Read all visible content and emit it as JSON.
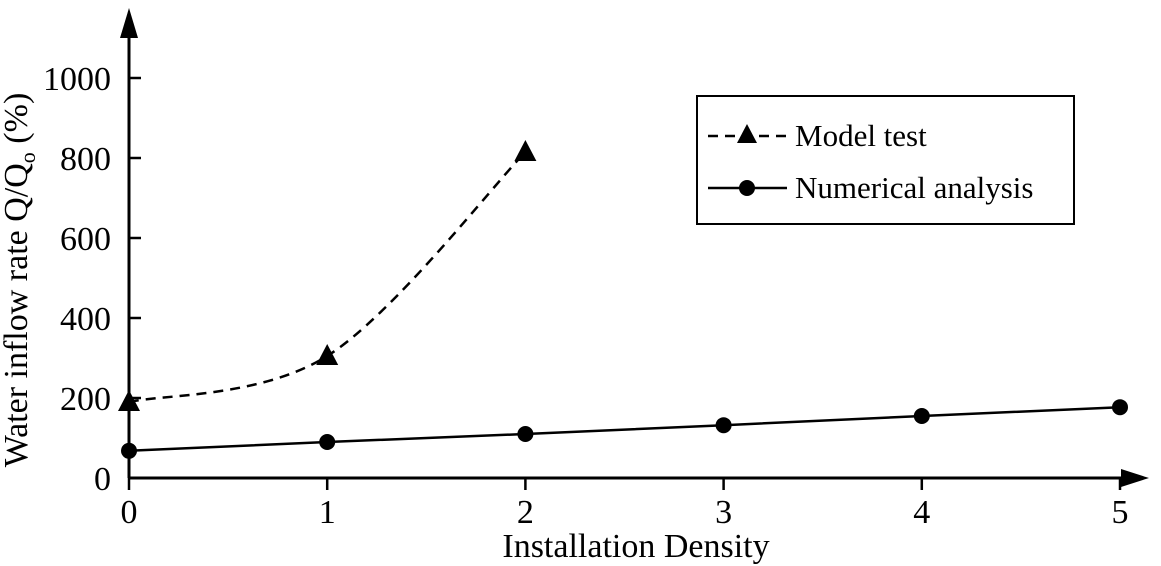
{
  "chart_data": {
    "type": "line",
    "xlabel": "Installation Density",
    "ylabel": "Water inflow rate Q/Q",
    "ylabel_subscript": "o",
    "ylabel_unit": " (%)",
    "x_ticks": [
      "0",
      "1",
      "2",
      "3",
      "4",
      "5"
    ],
    "y_ticks": [
      "0",
      "200",
      "400",
      "600",
      "800",
      "1000"
    ],
    "xlim": [
      0,
      5
    ],
    "ylim": [
      0,
      1000
    ],
    "grid": false,
    "legend_position": "top-right",
    "series": [
      {
        "name": "Model test",
        "style": "dashed",
        "marker": "triangle",
        "x": [
          0,
          1,
          2
        ],
        "y": [
          190,
          305,
          815
        ]
      },
      {
        "name": "Numerical analysis",
        "style": "solid",
        "marker": "circle",
        "x": [
          0,
          1,
          2,
          3,
          4,
          5
        ],
        "y": [
          68,
          90,
          110,
          132,
          155,
          177
        ]
      }
    ]
  }
}
